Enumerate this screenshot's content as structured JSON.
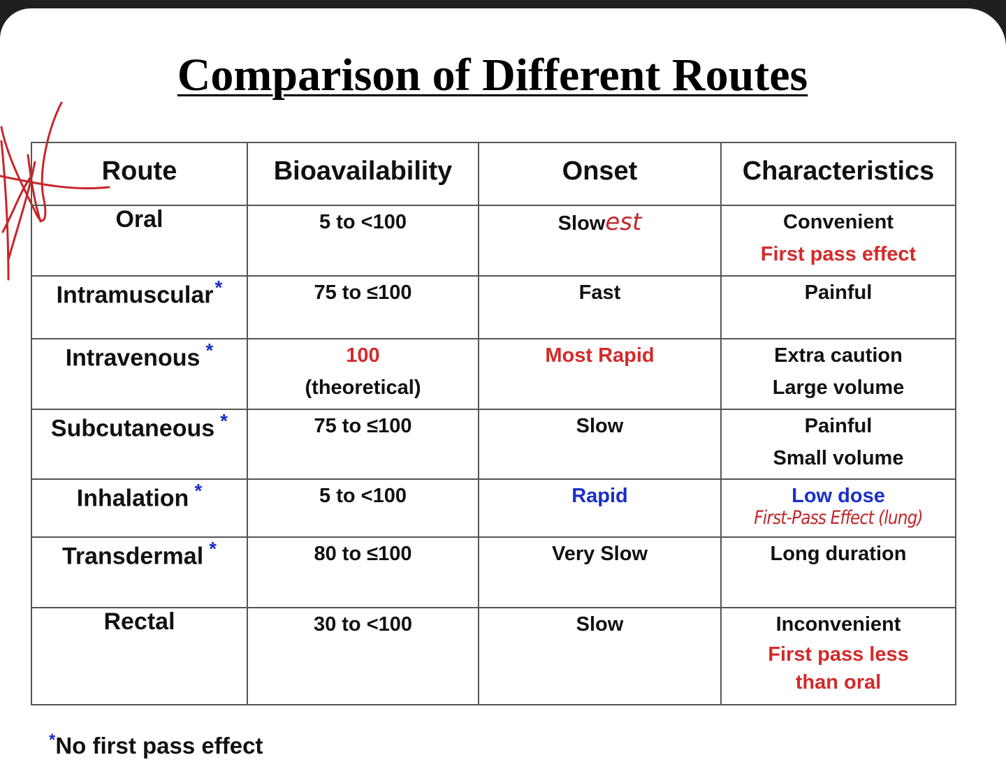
{
  "title": "Comparison of Different Routes",
  "columns": [
    "Route",
    "Bioavailability",
    "Onset",
    "Characteristics"
  ],
  "rows": [
    {
      "route": "Oral",
      "route_star": "",
      "bio": "5 to <100",
      "bio_note": "",
      "onset": "Slow",
      "onset_handwritten": "est",
      "char1": "Convenient",
      "char2": "First pass effect",
      "char3": "",
      "char_handwritten": ""
    },
    {
      "route": "Intramuscular",
      "route_star": "*",
      "bio": "75 to ≤100",
      "bio_note": "",
      "onset": "Fast",
      "onset_handwritten": "",
      "char1": "Painful",
      "char2": "",
      "char3": "",
      "char_handwritten": ""
    },
    {
      "route": "Intravenous",
      "route_star": "*",
      "bio": "100",
      "bio_note": "(theoretical)",
      "onset": "Most Rapid",
      "onset_handwritten": "",
      "char1": "Extra caution",
      "char2": "Large volume",
      "char3": "",
      "char_handwritten": ""
    },
    {
      "route": "Subcutaneous",
      "route_star": "*",
      "bio": "75 to ≤100",
      "bio_note": "",
      "onset": "Slow",
      "onset_handwritten": "",
      "char1": "Painful",
      "char2": "Small volume",
      "char3": "",
      "char_handwritten": ""
    },
    {
      "route": "Inhalation",
      "route_star": "*",
      "bio": "5 to <100",
      "bio_note": "",
      "onset": "Rapid",
      "onset_handwritten": "",
      "char1": "Low dose",
      "char2": "",
      "char3": "",
      "char_handwritten": "First-Pass Effect (lung)"
    },
    {
      "route": "Transdermal",
      "route_star": "*",
      "bio": "80 to ≤100",
      "bio_note": "",
      "onset": "Very Slow",
      "onset_handwritten": "",
      "char1": "Long duration",
      "char2": "",
      "char3": "",
      "char_handwritten": ""
    },
    {
      "route": "Rectal",
      "route_star": "",
      "bio": "30 to <100",
      "bio_note": "",
      "onset": "Slow",
      "onset_handwritten": "",
      "char1": "Inconvenient",
      "char2": "First pass less",
      "char3": "than oral",
      "char_handwritten": ""
    }
  ],
  "footnote": {
    "star": "*",
    "text": "No first pass effect"
  },
  "colors": {
    "red": "#d42a2a",
    "blue": "#1a2fc8",
    "ink": "#c0262b",
    "border": "#555555"
  }
}
